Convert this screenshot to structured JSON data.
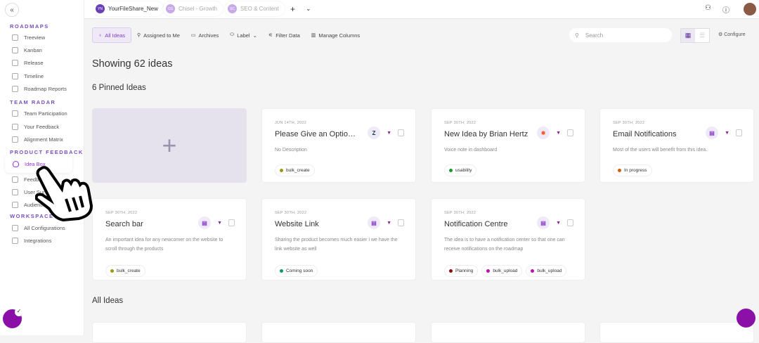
{
  "sidebar": {
    "collapse_icon": "double-chevron-left",
    "sections": [
      {
        "title": "ROADMAPS",
        "items": [
          {
            "label": "Treeview"
          },
          {
            "label": "Kanban"
          },
          {
            "label": "Release"
          },
          {
            "label": "Timeline"
          },
          {
            "label": "Roadmap Reports"
          }
        ]
      },
      {
        "title": "TEAM RADAR",
        "items": [
          {
            "label": "Team Participation"
          },
          {
            "label": "Your Feedback"
          },
          {
            "label": "Alignment Matrix"
          }
        ]
      },
      {
        "title": "PRODUCT FEEDBACK",
        "items": [
          {
            "label": "Idea Box",
            "active": true
          },
          {
            "label": "Feedback"
          },
          {
            "label": "User Surveys"
          },
          {
            "label": "Audience"
          }
        ]
      },
      {
        "title": "WORKSPACE",
        "items": [
          {
            "label": "All Configurations"
          },
          {
            "label": "Integrations"
          }
        ]
      }
    ]
  },
  "topbar": {
    "workspaces": [
      {
        "initials": "YN",
        "name": "YourFileShare_New",
        "color": "#6a3fb5"
      },
      {
        "initials": "CG",
        "name": "Chisel - Growth",
        "color": "#c6a9e6"
      },
      {
        "initials": "SC",
        "name": "SEO & Content",
        "color": "#c6a9e6"
      }
    ],
    "add": "+",
    "more_icon": "chevron-down"
  },
  "toolbar": {
    "items": [
      "All Ideas",
      "Assigned to Me",
      "Archives",
      "Label",
      "Filter Data",
      "Manage Columns"
    ],
    "search_placeholder": "Search",
    "configure": "Configure"
  },
  "main": {
    "heading": "Showing 62 ideas",
    "pinned_heading": "6 Pinned Ideas",
    "all_heading": "All Ideas",
    "add_label": "+",
    "pinned": [
      {
        "date": "JUN 14TH, 2022",
        "title": "Please Give an Option F...",
        "desc": "No Description",
        "source": "Z",
        "tags": [
          {
            "label": "bulk_create",
            "color": "#9a9a10"
          }
        ]
      },
      {
        "date": "SEP 30TH, 2022",
        "title": "New Idea by Brian Hertz",
        "desc": "Voice note in dashboard",
        "source": "✸",
        "tags": [
          {
            "label": "usability",
            "color": "#1a9a2a"
          }
        ]
      },
      {
        "date": "SEP 30TH, 2022",
        "title": "Email Notifications",
        "desc": "Most of the users will benefit from this idea.",
        "source": "▤",
        "tags": [
          {
            "label": "In progress",
            "color": "#d0600a"
          }
        ]
      },
      {
        "date": "SEP 30TH, 2022",
        "title": "Search bar",
        "desc": "An important idea for any newcomer on the website to scroll through the products",
        "source": "▤",
        "tags": [
          {
            "label": "bulk_create",
            "color": "#9a9a10"
          }
        ]
      },
      {
        "date": "SEP 30TH, 2022",
        "title": "Website Link",
        "desc": "Sharing the product becomes much easier i we have the link website as well",
        "source": "▤",
        "tags": [
          {
            "label": "Coming soon",
            "color": "#0a9a6a"
          }
        ]
      },
      {
        "date": "SEP 30TH, 2022",
        "title": "Notification Centre",
        "desc": "The idea is to have a notification center so that one can receive notifications on the roadmap",
        "source": "▤",
        "tags": [
          {
            "label": "Planning",
            "color": "#8a1010"
          },
          {
            "label": "bulk_upload",
            "color": "#c010b0"
          },
          {
            "label": "bulk_upload",
            "color": "#c010b0"
          }
        ]
      }
    ]
  }
}
